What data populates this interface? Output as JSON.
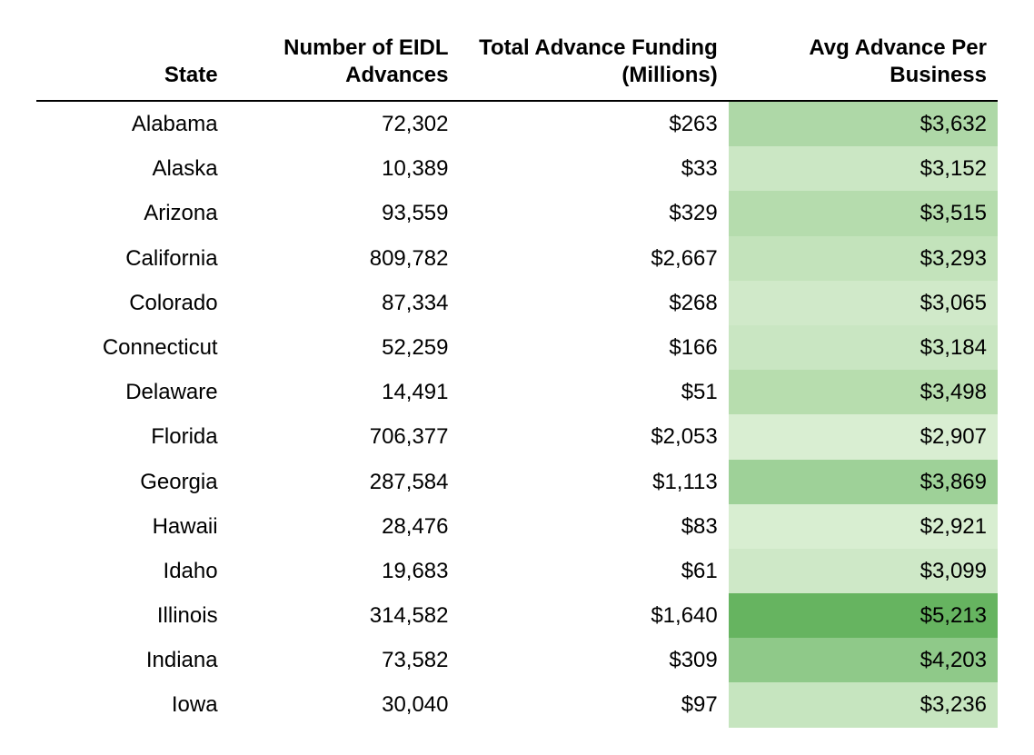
{
  "table": {
    "type": "table",
    "background_color": "#ffffff",
    "font_family": "Arial, Helvetica, sans-serif",
    "header_fontsize": 24,
    "cell_fontsize": 24,
    "text_color": "#000000",
    "header_border_color": "#000000",
    "header_border_width": 2,
    "columns": [
      {
        "key": "state",
        "label": "State",
        "align": "right",
        "width_pct": 20
      },
      {
        "key": "num_advances",
        "label": "Number of EIDL Advances",
        "align": "right",
        "width_pct": 24
      },
      {
        "key": "total_funding",
        "label": "Total Advance Funding (Millions)",
        "align": "right",
        "width_pct": 28
      },
      {
        "key": "avg_advance",
        "label": "Avg Advance Per Business",
        "align": "right",
        "width_pct": 28,
        "heatmap": true
      }
    ],
    "heatmap_palette_note": "last column shaded green by value; darker = higher",
    "rows": [
      {
        "state": "Alabama",
        "num_advances": "72,302",
        "total_funding": "$263",
        "avg_advance": "$3,632",
        "avg_bg": "#aed8a7"
      },
      {
        "state": "Alaska",
        "num_advances": "10,389",
        "total_funding": "$33",
        "avg_advance": "$3,152",
        "avg_bg": "#cbe7c4"
      },
      {
        "state": "Arizona",
        "num_advances": "93,559",
        "total_funding": "$329",
        "avg_advance": "$3,515",
        "avg_bg": "#b5dcad"
      },
      {
        "state": "California",
        "num_advances": "809,782",
        "total_funding": "$2,667",
        "avg_advance": "$3,293",
        "avg_bg": "#c3e3bb"
      },
      {
        "state": "Colorado",
        "num_advances": "87,334",
        "total_funding": "$268",
        "avg_advance": "$3,065",
        "avg_bg": "#d0e9c9"
      },
      {
        "state": "Connecticut",
        "num_advances": "52,259",
        "total_funding": "$166",
        "avg_advance": "$3,184",
        "avg_bg": "#c9e6c2"
      },
      {
        "state": "Delaware",
        "num_advances": "14,491",
        "total_funding": "$51",
        "avg_advance": "$3,498",
        "avg_bg": "#b7ddae"
      },
      {
        "state": "Florida",
        "num_advances": "706,377",
        "total_funding": "$2,053",
        "avg_advance": "$2,907",
        "avg_bg": "#d9eed2"
      },
      {
        "state": "Georgia",
        "num_advances": "287,584",
        "total_funding": "$1,113",
        "avg_advance": "$3,869",
        "avg_bg": "#9ed198"
      },
      {
        "state": "Hawaii",
        "num_advances": "28,476",
        "total_funding": "$83",
        "avg_advance": "$2,921",
        "avg_bg": "#d8eed1"
      },
      {
        "state": "Idaho",
        "num_advances": "19,683",
        "total_funding": "$61",
        "avg_advance": "$3,099",
        "avg_bg": "#cee8c7"
      },
      {
        "state": "Illinois",
        "num_advances": "314,582",
        "total_funding": "$1,640",
        "avg_advance": "$5,213",
        "avg_bg": "#66b460"
      },
      {
        "state": "Indiana",
        "num_advances": "73,582",
        "total_funding": "$309",
        "avg_advance": "$4,203",
        "avg_bg": "#8fc989"
      },
      {
        "state": "Iowa",
        "num_advances": "30,040",
        "total_funding": "$97",
        "avg_advance": "$3,236",
        "avg_bg": "#c6e5bf"
      }
    ]
  }
}
